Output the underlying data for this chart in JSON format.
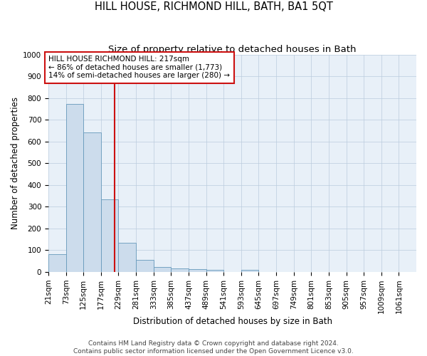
{
  "title": "HILL HOUSE, RICHMOND HILL, BATH, BA1 5QT",
  "subtitle": "Size of property relative to detached houses in Bath",
  "xlabel": "Distribution of detached houses by size in Bath",
  "ylabel": "Number of detached properties",
  "bin_labels": [
    "21sqm",
    "73sqm",
    "125sqm",
    "177sqm",
    "229sqm",
    "281sqm",
    "333sqm",
    "385sqm",
    "437sqm",
    "489sqm",
    "541sqm",
    "593sqm",
    "645sqm",
    "697sqm",
    "749sqm",
    "801sqm",
    "853sqm",
    "905sqm",
    "957sqm",
    "1009sqm",
    "1061sqm"
  ],
  "bin_edges": [
    21,
    73,
    125,
    177,
    229,
    281,
    333,
    385,
    437,
    489,
    541,
    593,
    645,
    697,
    749,
    801,
    853,
    905,
    957,
    1009,
    1061
  ],
  "bar_heights": [
    83,
    773,
    643,
    335,
    135,
    57,
    24,
    17,
    12,
    10,
    0,
    10,
    0,
    0,
    0,
    0,
    0,
    0,
    0,
    0
  ],
  "bar_color": "#ccdcec",
  "bar_edge_color": "#6699bb",
  "ylim": [
    0,
    1000
  ],
  "yticks": [
    0,
    100,
    200,
    300,
    400,
    500,
    600,
    700,
    800,
    900,
    1000
  ],
  "vline_x": 217,
  "vline_color": "#cc1111",
  "annotation_text": "HILL HOUSE RICHMOND HILL: 217sqm\n← 86% of detached houses are smaller (1,773)\n14% of semi-detached houses are larger (280) →",
  "annotation_box_facecolor": "#ffffff",
  "annotation_box_edgecolor": "#cc1111",
  "footer_line1": "Contains HM Land Registry data © Crown copyright and database right 2024.",
  "footer_line2": "Contains public sector information licensed under the Open Government Licence v3.0.",
  "plot_bg_color": "#e8f0f8",
  "grid_color": "#bbccdd",
  "title_fontsize": 10.5,
  "subtitle_fontsize": 9.5,
  "axis_label_fontsize": 8.5,
  "tick_fontsize": 7.5,
  "annotation_fontsize": 7.5,
  "footer_fontsize": 6.5
}
